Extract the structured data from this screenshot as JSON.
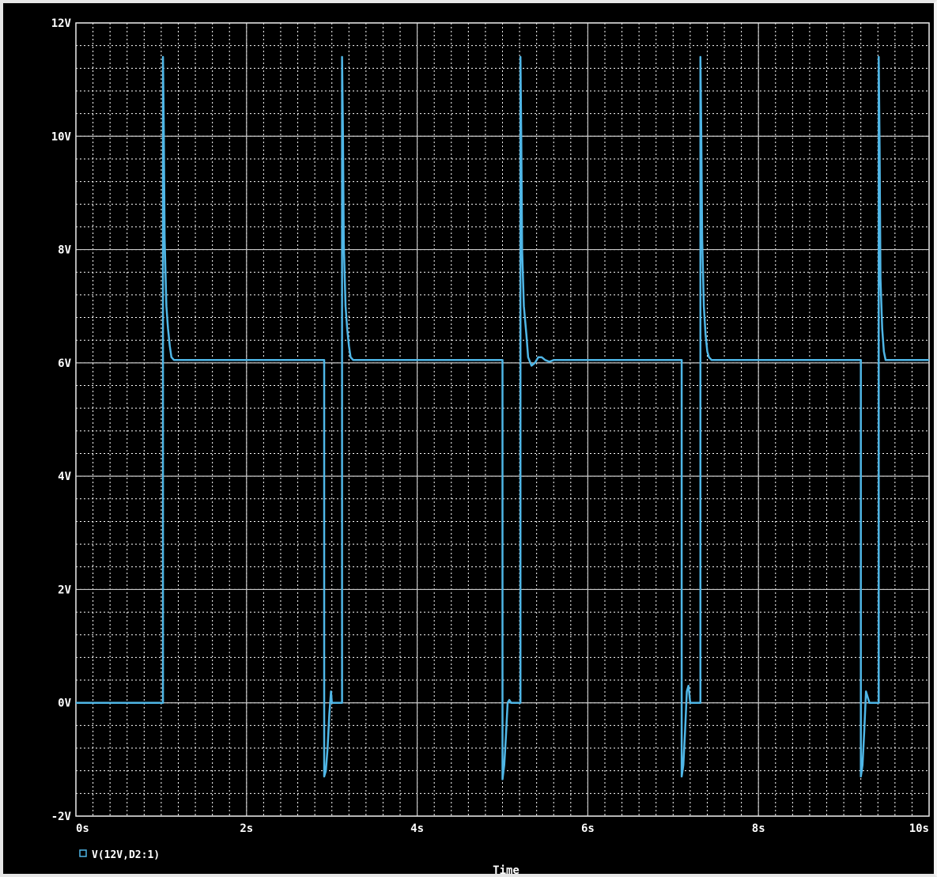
{
  "chart_data": {
    "type": "line",
    "xlabel": "Time",
    "ylabel": "",
    "xlim": [
      0,
      10
    ],
    "ylim": [
      -2,
      12
    ],
    "x_ticks": [
      0,
      2,
      4,
      6,
      8,
      10
    ],
    "x_tick_labels": [
      "0s",
      "2s",
      "4s",
      "6s",
      "8s",
      "10s"
    ],
    "y_ticks": [
      -2,
      0,
      2,
      4,
      6,
      8,
      10,
      12
    ],
    "y_tick_labels": [
      "-2V",
      "0V",
      "2V",
      "4V",
      "6V",
      "8V",
      "10V",
      "12V"
    ],
    "grid": true,
    "legend": "bottom-left",
    "colors": {
      "background": "#000000",
      "grid": "#ffffff",
      "trace": "#4fb6e6",
      "text": "#ffffff"
    },
    "series": [
      {
        "name": "V(12V,D2:1)",
        "x": [
          0,
          1.02,
          1.02,
          1.03,
          1.04,
          1.06,
          1.08,
          1.1,
          1.12,
          1.15,
          1.2,
          1.3,
          2.91,
          2.91,
          2.93,
          2.95,
          2.97,
          2.99,
          3.0,
          3.01,
          3.03,
          3.12,
          3.12,
          3.13,
          3.14,
          3.16,
          3.18,
          3.2,
          3.22,
          3.25,
          3.3,
          3.4,
          5.0,
          5.0,
          5.02,
          5.04,
          5.06,
          5.08,
          5.1,
          5.12,
          5.21,
          5.21,
          5.22,
          5.23,
          5.25,
          5.28,
          5.3,
          5.34,
          5.38,
          5.42,
          5.46,
          5.5,
          5.55,
          5.6,
          5.8,
          7.1,
          7.1,
          7.12,
          7.14,
          7.16,
          7.18,
          7.2,
          7.21,
          7.32,
          7.32,
          7.33,
          7.34,
          7.36,
          7.38,
          7.4,
          7.42,
          7.45,
          7.5,
          7.6,
          9.2,
          9.2,
          9.22,
          9.24,
          9.26,
          9.28,
          9.3,
          9.41,
          9.41,
          9.42,
          9.43,
          9.45,
          9.47,
          9.49,
          9.52,
          9.56,
          9.6,
          10.0
        ],
        "values": [
          0,
          0,
          11.4,
          10.2,
          8.2,
          7.0,
          6.6,
          6.3,
          6.1,
          6.05,
          6.05,
          6.05,
          6.05,
          -1.3,
          -1.2,
          -0.8,
          -0.2,
          0.2,
          0.0,
          0.0,
          0.0,
          0.0,
          11.4,
          10.1,
          8.1,
          7.0,
          6.6,
          6.3,
          6.1,
          6.05,
          6.05,
          6.05,
          6.05,
          -1.35,
          -1.1,
          -0.6,
          0.0,
          0.05,
          0.0,
          0.0,
          0.0,
          11.4,
          10.0,
          8.0,
          7.0,
          6.5,
          6.1,
          5.95,
          6.0,
          6.1,
          6.1,
          6.05,
          6.02,
          6.05,
          6.05,
          6.05,
          -1.3,
          -1.1,
          -0.5,
          0.2,
          0.3,
          0.0,
          0.0,
          0.0,
          11.4,
          10.0,
          8.2,
          7.0,
          6.5,
          6.2,
          6.1,
          6.05,
          6.05,
          6.05,
          6.05,
          -1.3,
          -1.1,
          -0.5,
          0.2,
          0.1,
          0.0,
          0.0,
          11.4,
          9.8,
          7.5,
          6.6,
          6.2,
          6.05,
          6.05,
          6.05,
          6.05,
          6.05
        ]
      }
    ]
  }
}
